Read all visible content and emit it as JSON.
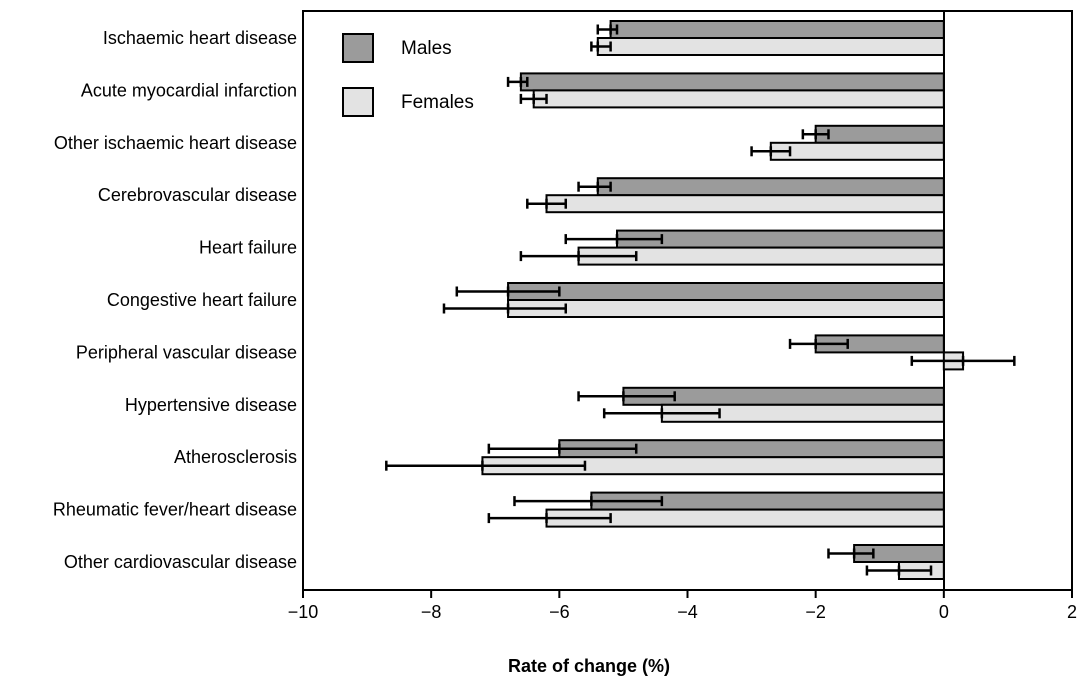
{
  "chart_data": {
    "type": "bar",
    "orientation": "horizontal",
    "categories": [
      "Ischaemic heart disease",
      "Acute myocardial infarction",
      "Other ischaemic heart disease",
      "Cerebrovascular disease",
      "Heart failure",
      "Congestive heart failure",
      "Peripheral vascular disease",
      "Hypertensive disease",
      "Atherosclerosis",
      "Rheumatic fever/heart disease",
      "Other cardiovascular disease"
    ],
    "series": [
      {
        "name": "Males",
        "color": "#9b9b9b",
        "values": [
          -5.2,
          -6.6,
          -2.0,
          -5.4,
          -5.1,
          -6.8,
          -2.0,
          -5.0,
          -6.0,
          -5.5,
          -1.4
        ],
        "error_low": [
          -5.4,
          -6.8,
          -2.2,
          -5.7,
          -5.9,
          -7.6,
          -2.4,
          -5.7,
          -7.1,
          -6.7,
          -1.8
        ],
        "error_high": [
          -5.1,
          -6.5,
          -1.8,
          -5.2,
          -4.4,
          -6.0,
          -1.5,
          -4.2,
          -4.8,
          -4.4,
          -1.1
        ]
      },
      {
        "name": "Females",
        "color": "#e3e3e3",
        "values": [
          -5.4,
          -6.4,
          -2.7,
          -6.2,
          -5.7,
          -6.8,
          0.3,
          -4.4,
          -7.2,
          -6.2,
          -0.7
        ],
        "error_low": [
          -5.5,
          -6.6,
          -3.0,
          -6.5,
          -6.6,
          -7.8,
          -0.5,
          -5.3,
          -8.7,
          -7.1,
          -1.2
        ],
        "error_high": [
          -5.2,
          -6.2,
          -2.4,
          -5.9,
          -4.8,
          -5.9,
          1.1,
          -3.5,
          -5.6,
          -5.2,
          -0.2
        ]
      }
    ],
    "xlabel": "Rate of change (%)",
    "ylabel": "",
    "xlim": [
      -10,
      2
    ],
    "xticks": [
      -10,
      -8,
      -6,
      -4,
      -2,
      0,
      2
    ],
    "xtick_labels": [
      "−10",
      "−8",
      "−6",
      "−4",
      "−2",
      "0",
      "2"
    ],
    "grid": false,
    "legend_position": "top-left"
  }
}
